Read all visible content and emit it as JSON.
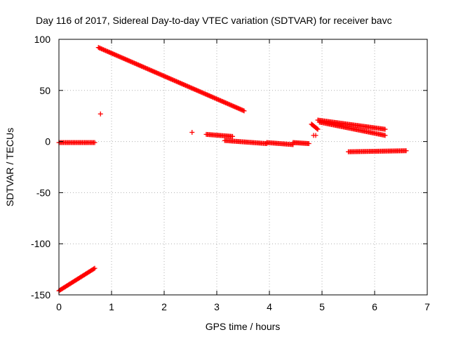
{
  "chart_data": {
    "type": "scatter",
    "title": "Day 116 of 2017, Sidereal Day-to-day VTEC variation (SDTVAR) for receiver bavc",
    "xlabel": "GPS time / hours",
    "ylabel": "SDTVAR / TECUs",
    "xlim": [
      0,
      7
    ],
    "ylim": [
      -150,
      100
    ],
    "xticks": [
      "0",
      "1",
      "2",
      "3",
      "4",
      "5",
      "6",
      "7"
    ],
    "yticks": [
      "-150",
      "-100",
      "-50",
      "0",
      "50",
      "100"
    ],
    "grid": true,
    "marker_color": "#ff0000",
    "marker": "plus",
    "segments": [
      {
        "x0": 0.0,
        "x1": 0.68,
        "y0": -146,
        "y1": -124
      },
      {
        "x0": 0.0,
        "x1": 0.68,
        "y0": -1,
        "y1": -1
      },
      {
        "x0": 0.75,
        "x1": 3.52,
        "y0": 92,
        "y1": 30
      },
      {
        "x0": 2.8,
        "x1": 3.3,
        "y0": 7,
        "y1": 5
      },
      {
        "x0": 3.15,
        "x1": 3.95,
        "y0": 1,
        "y1": -2
      },
      {
        "x0": 3.95,
        "x1": 4.45,
        "y0": -1,
        "y1": -3
      },
      {
        "x0": 4.45,
        "x1": 4.75,
        "y0": -1,
        "y1": -2
      },
      {
        "x0": 4.8,
        "x1": 4.92,
        "y0": 17,
        "y1": 12
      },
      {
        "x0": 4.92,
        "x1": 6.2,
        "y0": 21,
        "y1": 12
      },
      {
        "x0": 4.95,
        "x1": 6.2,
        "y0": 19,
        "y1": 6
      },
      {
        "x0": 5.5,
        "x1": 6.6,
        "y0": -10,
        "y1": -9
      }
    ],
    "points": [
      {
        "x": 0.79,
        "y": 27
      },
      {
        "x": 2.53,
        "y": 9
      },
      {
        "x": 4.84,
        "y": 6
      },
      {
        "x": 4.88,
        "y": 6
      }
    ]
  }
}
